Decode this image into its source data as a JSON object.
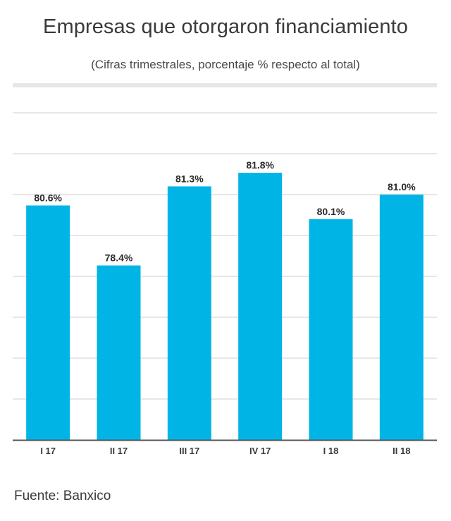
{
  "chart_data": {
    "type": "bar",
    "title": "Empresas que otorgaron financiamiento",
    "subtitle": "(Cifras trimestrales,  porcentaje % respecto al total)",
    "categories": [
      "I 17",
      "II 17",
      "III 17",
      "IV 17",
      "I 18",
      "II 18"
    ],
    "values": [
      80.6,
      78.4,
      81.3,
      81.8,
      80.1,
      81.0
    ],
    "value_labels": [
      "80.6%",
      "78.4%",
      "81.3%",
      "81.8%",
      "80.1%",
      "81.0%"
    ],
    "xlabel": "",
    "ylabel": "",
    "ylim": [
      72,
      84
    ],
    "grid": true,
    "legend": "none",
    "bar_color": "#00b5e6"
  },
  "footer": {
    "source": "Fuente: Banxico"
  }
}
